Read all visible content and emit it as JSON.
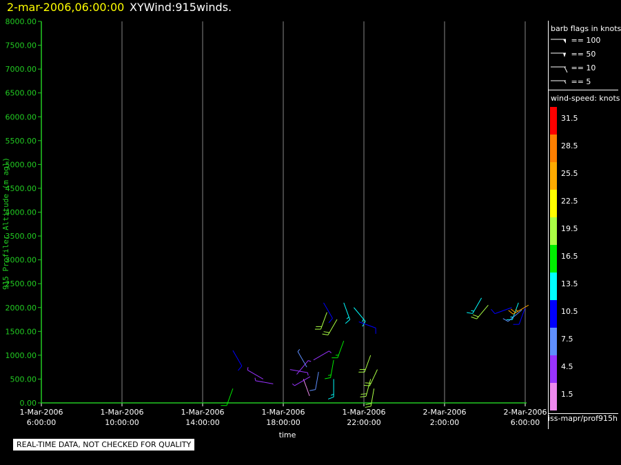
{
  "header": {
    "time": "2-mar-2006,06:00:00",
    "title": "XYWind:915winds."
  },
  "chart_data": {
    "type": "scatter",
    "subtype": "wind-barb",
    "xlabel": "time",
    "ylabel": "915 Profiler Altitude (m agl)",
    "x_ticks": [
      {
        "date": "1-Mar-2006",
        "time": "6:00:00"
      },
      {
        "date": "1-Mar-2006",
        "time": "10:00:00"
      },
      {
        "date": "1-Mar-2006",
        "time": "14:00:00"
      },
      {
        "date": "1-Mar-2006",
        "time": "18:00:00"
      },
      {
        "date": "1-Mar-2006",
        "time": "22:00:00"
      },
      {
        "date": "2-Mar-2006",
        "time": "2:00:00"
      },
      {
        "date": "2-Mar-2006",
        "time": "6:00:00"
      }
    ],
    "y_ticks": [
      "0.00",
      "500.00",
      "1000.00",
      "1500.00",
      "2000.00",
      "2500.00",
      "3000.00",
      "3500.00",
      "4000.00",
      "4500.00",
      "5000.00",
      "5500.00",
      "6000.00",
      "6500.00",
      "7000.00",
      "7500.00",
      "8000.00"
    ],
    "ylim": [
      0,
      8000
    ],
    "xlim": [
      "1-Mar-2006 06:00",
      "2-Mar-2006 06:00"
    ],
    "grid": "vertical",
    "colors": {
      "axis": "#22cc22",
      "grid": "#888888"
    },
    "barbs": [
      {
        "t": "1-Mar-2006 15:30",
        "alt": 300,
        "speed": 16,
        "dir": 200
      },
      {
        "t": "1-Mar-2006 15:30",
        "alt": 1100,
        "speed": 10,
        "dir": 150
      },
      {
        "t": "1-Mar-2006 17:00",
        "alt": 500,
        "speed": 4,
        "dir": 300
      },
      {
        "t": "1-Mar-2006 17:30",
        "alt": 400,
        "speed": 4,
        "dir": 280
      },
      {
        "t": "1-Mar-2006 18:20",
        "alt": 700,
        "speed": 3,
        "dir": 100
      },
      {
        "t": "1-Mar-2006 18:40",
        "alt": 600,
        "speed": 3,
        "dir": 40
      },
      {
        "t": "1-Mar-2006 19:00",
        "alt": 500,
        "speed": 2,
        "dir": 160
      },
      {
        "t": "1-Mar-2006 19:10",
        "alt": 750,
        "speed": 6,
        "dir": 330
      },
      {
        "t": "1-Mar-2006 19:20",
        "alt": 550,
        "speed": 3,
        "dir": 240
      },
      {
        "t": "1-Mar-2006 19:30",
        "alt": 900,
        "speed": 4,
        "dir": 60
      },
      {
        "t": "1-Mar-2006 19:45",
        "alt": 650,
        "speed": 8,
        "dir": 190
      },
      {
        "t": "1-Mar-2006 20:00",
        "alt": 2100,
        "speed": 10,
        "dir": 150
      },
      {
        "t": "1-Mar-2006 20:10",
        "alt": 1900,
        "speed": 18,
        "dir": 200
      },
      {
        "t": "1-Mar-2006 20:30",
        "alt": 900,
        "speed": 16,
        "dir": 190
      },
      {
        "t": "1-Mar-2006 20:30",
        "alt": 500,
        "speed": 14,
        "dir": 180
      },
      {
        "t": "1-Mar-2006 20:40",
        "alt": 1750,
        "speed": 20,
        "dir": 210
      },
      {
        "t": "1-Mar-2006 21:00",
        "alt": 1300,
        "speed": 16,
        "dir": 200
      },
      {
        "t": "1-Mar-2006 21:00",
        "alt": 2100,
        "speed": 14,
        "dir": 160
      },
      {
        "t": "1-Mar-2006 21:30",
        "alt": 2000,
        "speed": 13,
        "dir": 140
      },
      {
        "t": "1-Mar-2006 21:45",
        "alt": 1700,
        "speed": 10,
        "dir": 110
      },
      {
        "t": "1-Mar-2006 22:20",
        "alt": 1000,
        "speed": 18,
        "dir": 200
      },
      {
        "t": "1-Mar-2006 22:20",
        "alt": 500,
        "speed": 20,
        "dir": 195
      },
      {
        "t": "1-Mar-2006 22:40",
        "alt": 700,
        "speed": 18,
        "dir": 205
      },
      {
        "t": "1-Mar-2006 22:30",
        "alt": 300,
        "speed": 19,
        "dir": 190
      },
      {
        "t": "2-Mar-2006 03:50",
        "alt": 2200,
        "speed": 14,
        "dir": 210
      },
      {
        "t": "2-Mar-2006 04:10",
        "alt": 2050,
        "speed": 18,
        "dir": 220
      },
      {
        "t": "2-Mar-2006 05:20",
        "alt": 2000,
        "speed": 11,
        "dir": 250
      },
      {
        "t": "2-Mar-2006 05:40",
        "alt": 2100,
        "speed": 13,
        "dir": 200
      },
      {
        "t": "2-Mar-2006 05:50",
        "alt": 1950,
        "speed": 8,
        "dir": 230
      },
      {
        "t": "2-Mar-2006 06:00",
        "alt": 2000,
        "speed": 10,
        "dir": 200
      },
      {
        "t": "2-Mar-2006 06:10",
        "alt": 2050,
        "speed": 26,
        "dir": 240
      }
    ]
  },
  "legend": {
    "flags_title": "barb flags in knots",
    "flags": [
      {
        "label": "== 100",
        "kind": "pennant"
      },
      {
        "label": "== 50",
        "kind": "flag"
      },
      {
        "label": "== 10",
        "kind": "full"
      },
      {
        "label": "== 5",
        "kind": "half"
      }
    ],
    "speed_title": "wind-speed: knots",
    "colorbar": [
      {
        "label": "31.5",
        "color": "#ff0000"
      },
      {
        "label": "28.5",
        "color": "#ff7f00"
      },
      {
        "label": "25.5",
        "color": "#ffaa00"
      },
      {
        "label": "22.5",
        "color": "#ffff00"
      },
      {
        "label": "19.5",
        "color": "#aaff44"
      },
      {
        "label": "16.5",
        "color": "#00ee00"
      },
      {
        "label": "13.5",
        "color": "#00ffff"
      },
      {
        "label": "10.5",
        "color": "#0000ff"
      },
      {
        "label": "7.5",
        "color": "#5f8fff"
      },
      {
        "label": "4.5",
        "color": "#9933ff"
      },
      {
        "label": "1.5",
        "color": "#ee88ee"
      }
    ],
    "footer": "iss-mapr/prof915h"
  },
  "note": "REAL-TIME DATA, NOT CHECKED FOR QUALITY"
}
